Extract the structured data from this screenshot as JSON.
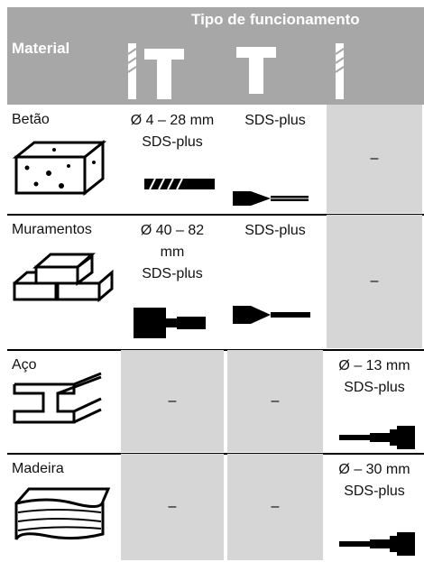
{
  "header": {
    "title": "Tipo de funcionamento",
    "material": "Material"
  },
  "table": {
    "rows": [
      [
        "Betão",
        [
          "Ø 4 – 28 mm",
          "SDS-plus"
        ],
        [
          "SDS-plus"
        ],
        [
          "–"
        ]
      ],
      [
        "Muramentos",
        [
          "Ø 40 – 82",
          "mm",
          "SDS-plus"
        ],
        [
          "SDS-plus"
        ],
        [
          "–"
        ]
      ],
      [
        "Aço",
        [
          "–"
        ],
        [
          "–"
        ],
        [
          "Ø  – 13 mm",
          "SDS-plus"
        ]
      ],
      [
        "Madeira",
        [
          "–"
        ],
        [
          "–"
        ],
        [
          "Ø  – 30 mm",
          "SDS-plus"
        ]
      ]
    ]
  }
}
